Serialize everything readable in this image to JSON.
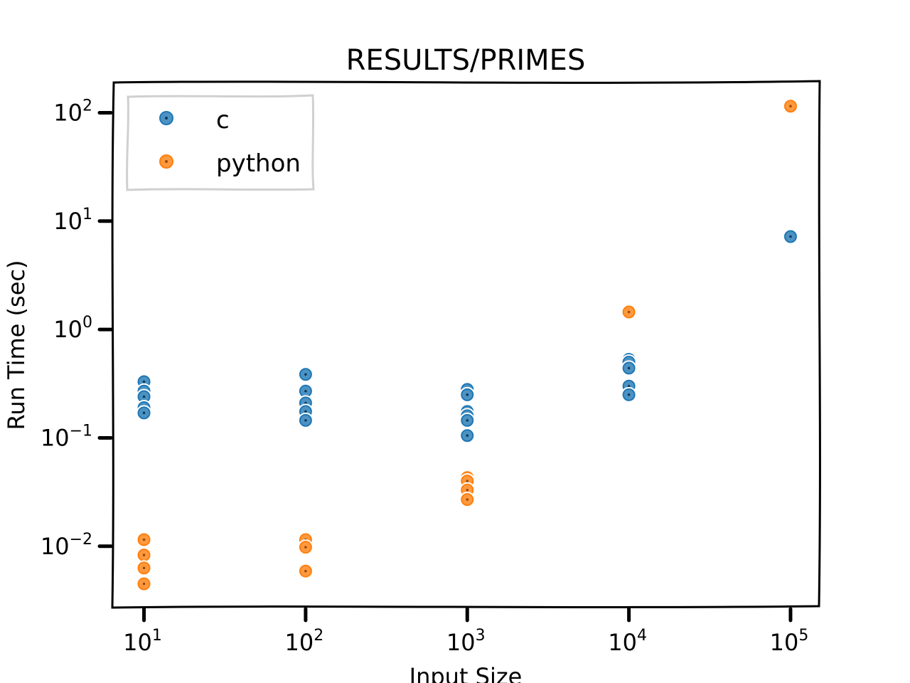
{
  "chart_data": {
    "type": "scatter",
    "title": "RESULTS/PRIMES",
    "xlabel": "Input Size",
    "ylabel": "Run Time (sec)",
    "xscale": "log",
    "yscale": "log",
    "xlim": [
      6.5,
      150000
    ],
    "ylim": [
      0.0028,
      190
    ],
    "xticks": [
      {
        "value": 10,
        "label": "10",
        "exp": "1"
      },
      {
        "value": 100,
        "label": "10",
        "exp": "2"
      },
      {
        "value": 1000,
        "label": "10",
        "exp": "3"
      },
      {
        "value": 10000,
        "label": "10",
        "exp": "4"
      },
      {
        "value": 100000,
        "label": "10",
        "exp": "5"
      }
    ],
    "yticks": [
      {
        "value": 100,
        "label": "10",
        "exp": "2"
      },
      {
        "value": 10,
        "label": "10",
        "exp": "1"
      },
      {
        "value": 1,
        "label": "10",
        "exp": "0"
      },
      {
        "value": 0.1,
        "label": "10",
        "exp": "−1"
      },
      {
        "value": 0.01,
        "label": "10",
        "exp": "−2"
      }
    ],
    "grid": false,
    "legend_position": "top-left",
    "series": [
      {
        "name": "c",
        "color": "#1f77b4",
        "points": [
          {
            "x": 10,
            "y": 0.33
          },
          {
            "x": 10,
            "y": 0.27
          },
          {
            "x": 10,
            "y": 0.24
          },
          {
            "x": 10,
            "y": 0.19
          },
          {
            "x": 10,
            "y": 0.17
          },
          {
            "x": 100,
            "y": 0.385
          },
          {
            "x": 100,
            "y": 0.27
          },
          {
            "x": 100,
            "y": 0.21
          },
          {
            "x": 100,
            "y": 0.175
          },
          {
            "x": 100,
            "y": 0.145
          },
          {
            "x": 1000,
            "y": 0.28
          },
          {
            "x": 1000,
            "y": 0.25
          },
          {
            "x": 1000,
            "y": 0.175
          },
          {
            "x": 1000,
            "y": 0.16
          },
          {
            "x": 1000,
            "y": 0.145
          },
          {
            "x": 1000,
            "y": 0.105
          },
          {
            "x": 10000,
            "y": 0.53
          },
          {
            "x": 10000,
            "y": 0.5
          },
          {
            "x": 10000,
            "y": 0.44
          },
          {
            "x": 10000,
            "y": 0.3
          },
          {
            "x": 10000,
            "y": 0.25
          },
          {
            "x": 100000,
            "y": 7.2
          }
        ]
      },
      {
        "name": "python",
        "color": "#ff7f0e",
        "points": [
          {
            "x": 10,
            "y": 0.0115
          },
          {
            "x": 10,
            "y": 0.0083
          },
          {
            "x": 10,
            "y": 0.0063
          },
          {
            "x": 10,
            "y": 0.0045
          },
          {
            "x": 100,
            "y": 0.0115
          },
          {
            "x": 100,
            "y": 0.0098
          },
          {
            "x": 100,
            "y": 0.0059
          },
          {
            "x": 1000,
            "y": 0.043
          },
          {
            "x": 1000,
            "y": 0.04
          },
          {
            "x": 1000,
            "y": 0.033
          },
          {
            "x": 1000,
            "y": 0.027
          },
          {
            "x": 10000,
            "y": 1.45
          },
          {
            "x": 100000,
            "y": 115
          }
        ]
      }
    ]
  }
}
